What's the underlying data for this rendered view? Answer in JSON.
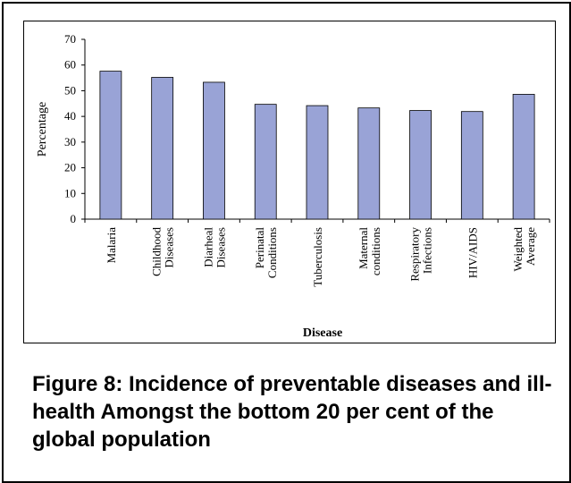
{
  "figure_caption": "Figure 8: Incidence of preventable diseases and ill-health Amongst the bottom 20 per cent of the global population",
  "colors": {
    "bar_fill": "#99A3D6",
    "bar_stroke": "#000000",
    "axis": "#000000"
  },
  "chart_data": {
    "type": "bar",
    "title": "",
    "xlabel": "Disease",
    "ylabel": "Percentage",
    "ylim": [
      0,
      70
    ],
    "yticks": [
      0,
      10,
      20,
      30,
      40,
      50,
      60,
      70
    ],
    "grid": false,
    "legend": "none",
    "categories": [
      [
        "Malaria"
      ],
      [
        "Childhood",
        "Diseases"
      ],
      [
        "Diarheal",
        "Diseases"
      ],
      [
        "Perinatal",
        "Conditions"
      ],
      [
        "Tuberculosis"
      ],
      [
        "Maternal",
        "conditions"
      ],
      [
        "Respiratory",
        "Infections"
      ],
      [
        "HIV/AIDS"
      ],
      [
        "Weighted",
        "Average"
      ]
    ],
    "values": [
      57.6,
      55.2,
      53.3,
      44.7,
      44.2,
      43.3,
      42.3,
      41.9,
      48.6
    ]
  }
}
